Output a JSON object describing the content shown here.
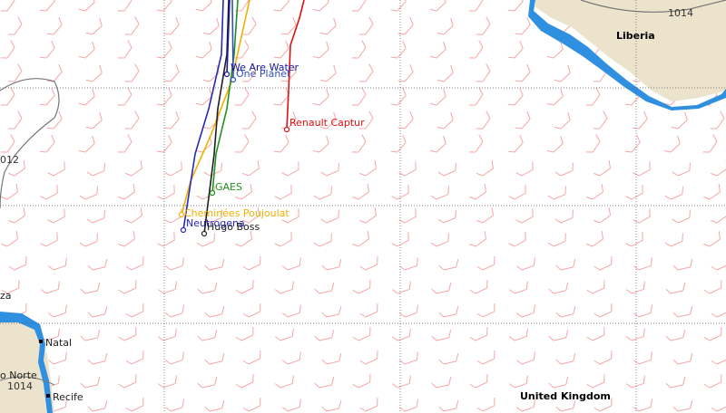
{
  "boats": [
    {
      "name": "We Are Water"
    },
    {
      "name": "One Planet"
    },
    {
      "name": "Renault Captur"
    },
    {
      "name": "GAES"
    },
    {
      "name": "Cheminées Poujoulat"
    },
    {
      "name": "Neutrogena"
    },
    {
      "name": "Hugo Boss"
    }
  ],
  "places": [
    "Liberia",
    "za",
    "Natal",
    "o Norte",
    "Recife",
    "United Kingdom"
  ],
  "pressure_labels": [
    "1014",
    "012",
    "1014"
  ]
}
